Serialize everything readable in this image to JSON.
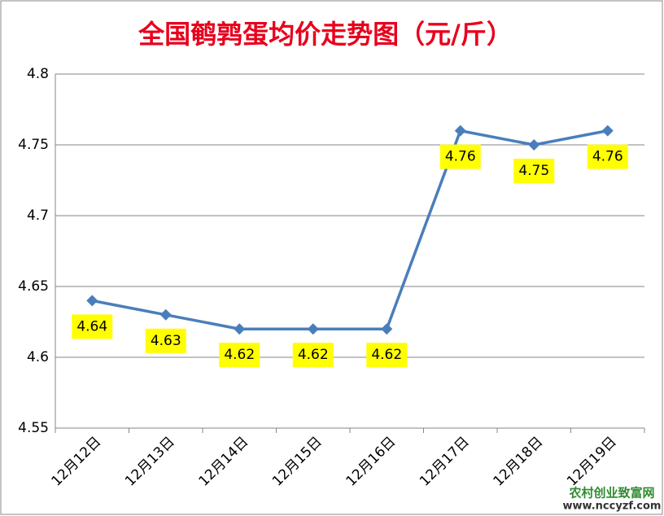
{
  "chart_data": {
    "type": "line",
    "title": "全国鹌鹑蛋均价走势图（元/斤）",
    "categories": [
      "12月12日",
      "12月13日",
      "12月14日",
      "12月15日",
      "12月16日",
      "12月17日",
      "12月18日",
      "12月19日"
    ],
    "series": [
      {
        "name": "鹌鹑蛋均价",
        "color": "#4a7ebb",
        "values": [
          4.64,
          4.63,
          4.62,
          4.62,
          4.62,
          4.76,
          4.75,
          4.76
        ]
      }
    ],
    "ylim": [
      4.55,
      4.8
    ],
    "yticks": [
      4.55,
      4.6,
      4.65,
      4.7,
      4.75,
      4.8
    ],
    "grid": true,
    "data_labels": true,
    "label_background": "#ffff00"
  },
  "watermark": {
    "name": "农村创业致富网",
    "url": "www.nccyzf.com"
  }
}
